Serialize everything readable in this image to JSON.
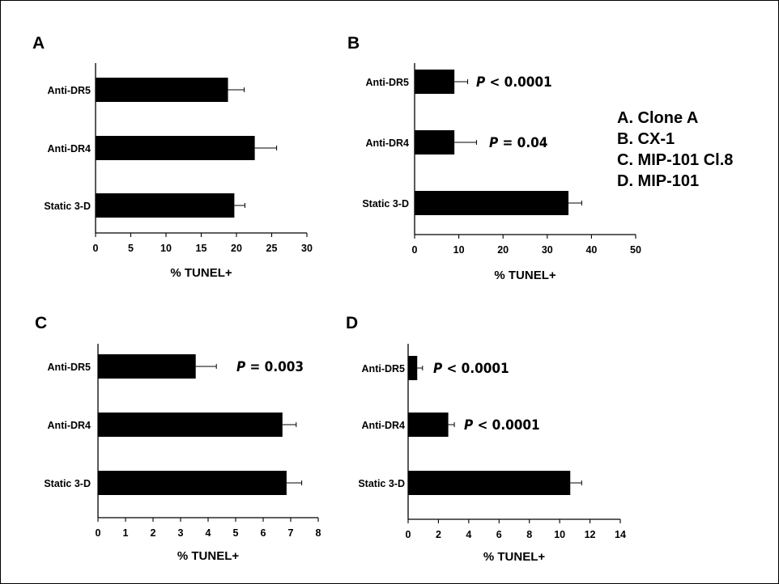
{
  "legend": {
    "items": [
      "A. Clone A",
      "B. CX-1",
      "C. MIP-101 Cl.8",
      "D. MIP-101"
    ]
  },
  "chart_data": [
    {
      "type": "bar",
      "orientation": "horizontal",
      "panel": "A",
      "categories": [
        "Anti-DR5",
        "Anti-DR4",
        "Static 3-D"
      ],
      "values": [
        18.8,
        22.6,
        19.7
      ],
      "errors": [
        2.3,
        3.1,
        1.5
      ],
      "xlabel": "% TUNEL+",
      "xlim": [
        0,
        30
      ],
      "xticks": [
        0,
        5,
        10,
        15,
        20,
        25,
        30
      ],
      "pvalues": [
        "",
        "",
        ""
      ]
    },
    {
      "type": "bar",
      "orientation": "horizontal",
      "panel": "B",
      "categories": [
        "Anti-DR5",
        "Anti-DR4",
        "Static 3-D"
      ],
      "values": [
        9.0,
        9.0,
        34.8
      ],
      "errors": [
        3.0,
        5.0,
        3.0
      ],
      "xlabel": "% TUNEL+",
      "xlim": [
        0,
        50
      ],
      "xticks": [
        0,
        10,
        20,
        30,
        40,
        50
      ],
      "pvalues": [
        "< 0.0001",
        "= 0.04",
        ""
      ]
    },
    {
      "type": "bar",
      "orientation": "horizontal",
      "panel": "C",
      "categories": [
        "Anti-DR5",
        "Anti-DR4",
        "Static 3-D"
      ],
      "values": [
        3.55,
        6.7,
        6.85
      ],
      "errors": [
        0.75,
        0.5,
        0.55
      ],
      "xlabel": "% TUNEL+",
      "xlim": [
        0,
        8
      ],
      "xticks": [
        0,
        1,
        2,
        3,
        4,
        5,
        6,
        7,
        8
      ],
      "pvalues": [
        "= 0.003",
        "",
        ""
      ]
    },
    {
      "type": "bar",
      "orientation": "horizontal",
      "panel": "D",
      "categories": [
        "Anti-DR5",
        "Anti-DR4",
        "Static 3-D"
      ],
      "values": [
        0.6,
        2.65,
        10.7
      ],
      "errors": [
        0.35,
        0.4,
        0.75
      ],
      "xlabel": "% TUNEL+",
      "xlim": [
        0,
        14
      ],
      "xticks": [
        0,
        2,
        4,
        6,
        8,
        10,
        12,
        14
      ],
      "pvalues": [
        "< 0.0001",
        "< 0.0001",
        ""
      ]
    }
  ]
}
